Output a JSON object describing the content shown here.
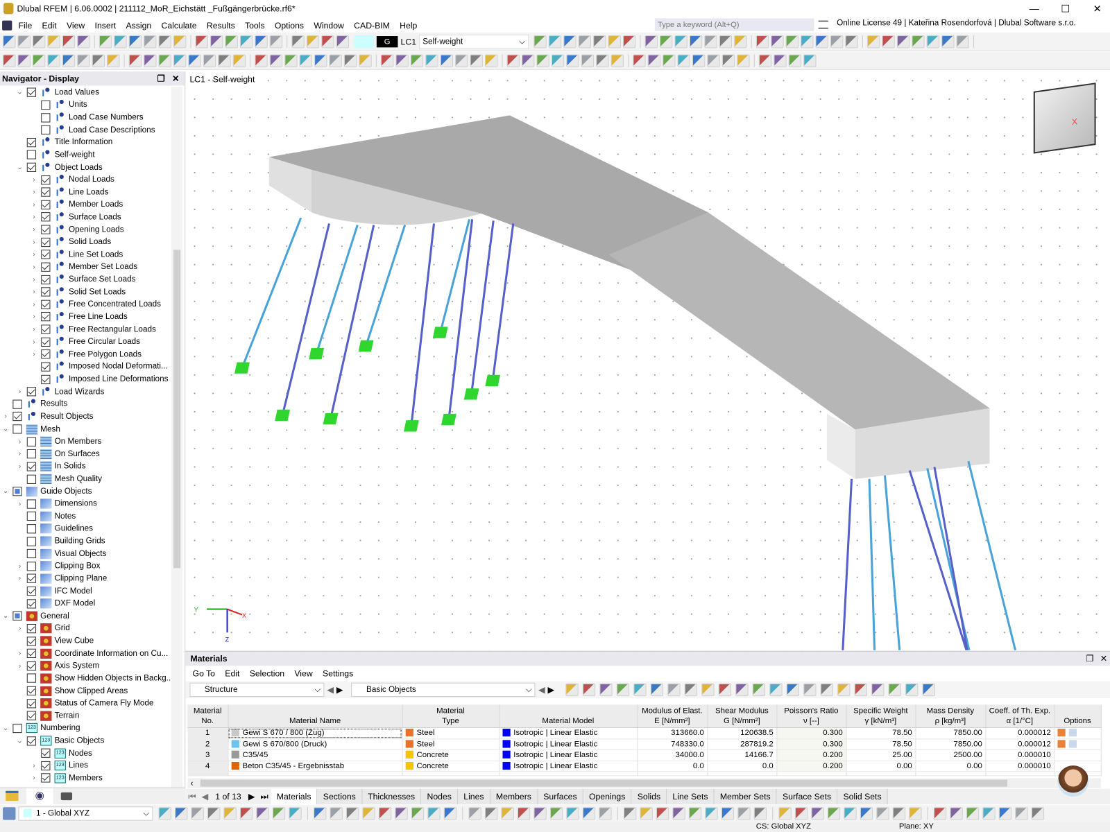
{
  "app": {
    "title": "Dlubal RFEM | 6.06.0002 | 211112_MoR_Eichstätt _Fußgängerbrücke.rf6*",
    "search_placeholder": "Type a keyword (Alt+Q)",
    "license": "Online License 49 | Kateřina Rosendorfová | Dlubal Software s.r.o."
  },
  "menu": [
    "File",
    "Edit",
    "View",
    "Insert",
    "Assign",
    "Calculate",
    "Results",
    "Tools",
    "Options",
    "Window",
    "CAD-BIM",
    "Help"
  ],
  "loadcase": {
    "badge": "G",
    "id": "LC1",
    "name": "Self-weight"
  },
  "navigator": {
    "title": "Navigator - Display",
    "items": [
      {
        "l": 1,
        "e": "v",
        "c": "on",
        "i": "load",
        "t": "Load Values"
      },
      {
        "l": 2,
        "e": "",
        "c": "off",
        "i": "load",
        "t": "Units"
      },
      {
        "l": 2,
        "e": "",
        "c": "off",
        "i": "load",
        "t": "Load Case Numbers"
      },
      {
        "l": 2,
        "e": "",
        "c": "off",
        "i": "load",
        "t": "Load Case Descriptions"
      },
      {
        "l": 1,
        "e": "",
        "c": "on",
        "i": "load",
        "t": "Title Information"
      },
      {
        "l": 1,
        "e": "",
        "c": "off",
        "i": "load",
        "t": "Self-weight"
      },
      {
        "l": 1,
        "e": "v",
        "c": "on",
        "i": "load",
        "t": "Object Loads"
      },
      {
        "l": 2,
        "e": ">",
        "c": "on",
        "i": "load",
        "t": "Nodal Loads"
      },
      {
        "l": 2,
        "e": ">",
        "c": "on",
        "i": "load",
        "t": "Line Loads"
      },
      {
        "l": 2,
        "e": ">",
        "c": "on",
        "i": "load",
        "t": "Member Loads"
      },
      {
        "l": 2,
        "e": ">",
        "c": "on",
        "i": "load",
        "t": "Surface Loads"
      },
      {
        "l": 2,
        "e": ">",
        "c": "on",
        "i": "load",
        "t": "Opening Loads"
      },
      {
        "l": 2,
        "e": ">",
        "c": "on",
        "i": "load",
        "t": "Solid Loads"
      },
      {
        "l": 2,
        "e": ">",
        "c": "on",
        "i": "load",
        "t": "Line Set Loads"
      },
      {
        "l": 2,
        "e": ">",
        "c": "on",
        "i": "load",
        "t": "Member Set Loads"
      },
      {
        "l": 2,
        "e": ">",
        "c": "on",
        "i": "load",
        "t": "Surface Set Loads"
      },
      {
        "l": 2,
        "e": ">",
        "c": "on",
        "i": "load",
        "t": "Solid Set Loads"
      },
      {
        "l": 2,
        "e": ">",
        "c": "on",
        "i": "load",
        "t": "Free Concentrated Loads"
      },
      {
        "l": 2,
        "e": ">",
        "c": "on",
        "i": "load",
        "t": "Free Line Loads"
      },
      {
        "l": 2,
        "e": ">",
        "c": "on",
        "i": "load",
        "t": "Free Rectangular Loads"
      },
      {
        "l": 2,
        "e": ">",
        "c": "on",
        "i": "load",
        "t": "Free Circular Loads"
      },
      {
        "l": 2,
        "e": ">",
        "c": "on",
        "i": "load",
        "t": "Free Polygon Loads"
      },
      {
        "l": 2,
        "e": "",
        "c": "on",
        "i": "load",
        "t": "Imposed Nodal Deformati..."
      },
      {
        "l": 2,
        "e": "",
        "c": "on",
        "i": "load",
        "t": "Imposed Line Deformations"
      },
      {
        "l": 1,
        "e": ">",
        "c": "on",
        "i": "load",
        "t": "Load Wizards"
      },
      {
        "l": 0,
        "e": "",
        "c": "off",
        "i": "load",
        "t": "Results"
      },
      {
        "l": 0,
        "e": ">",
        "c": "on",
        "i": "load",
        "t": "Result Objects"
      },
      {
        "l": 0,
        "e": "v",
        "c": "off",
        "i": "mesh",
        "t": "Mesh"
      },
      {
        "l": 1,
        "e": ">",
        "c": "off",
        "i": "mesh",
        "t": "On Members"
      },
      {
        "l": 1,
        "e": ">",
        "c": "off",
        "i": "mesh",
        "t": "On Surfaces"
      },
      {
        "l": 1,
        "e": ">",
        "c": "on",
        "i": "mesh",
        "t": "In Solids"
      },
      {
        "l": 1,
        "e": "",
        "c": "off",
        "i": "mesh",
        "t": "Mesh Quality"
      },
      {
        "l": 0,
        "e": "v",
        "c": "part",
        "i": "guide",
        "t": "Guide Objects"
      },
      {
        "l": 1,
        "e": ">",
        "c": "off",
        "i": "guide",
        "t": "Dimensions"
      },
      {
        "l": 1,
        "e": "",
        "c": "off",
        "i": "guide",
        "t": "Notes"
      },
      {
        "l": 1,
        "e": "",
        "c": "off",
        "i": "guide",
        "t": "Guidelines"
      },
      {
        "l": 1,
        "e": "",
        "c": "off",
        "i": "guide",
        "t": "Building Grids"
      },
      {
        "l": 1,
        "e": "",
        "c": "off",
        "i": "guide",
        "t": "Visual Objects"
      },
      {
        "l": 1,
        "e": ">",
        "c": "off",
        "i": "guide",
        "t": "Clipping Box"
      },
      {
        "l": 1,
        "e": ">",
        "c": "on",
        "i": "guide",
        "t": "Clipping Plane"
      },
      {
        "l": 1,
        "e": "",
        "c": "on",
        "i": "guide",
        "t": "IFC Model"
      },
      {
        "l": 1,
        "e": "",
        "c": "on",
        "i": "guide",
        "t": "DXF Model"
      },
      {
        "l": 0,
        "e": "v",
        "c": "part",
        "i": "gen",
        "t": "General"
      },
      {
        "l": 1,
        "e": ">",
        "c": "on",
        "i": "gen",
        "t": "Grid"
      },
      {
        "l": 1,
        "e": "",
        "c": "on",
        "i": "gen",
        "t": "View Cube"
      },
      {
        "l": 1,
        "e": ">",
        "c": "on",
        "i": "gen",
        "t": "Coordinate Information on Cu..."
      },
      {
        "l": 1,
        "e": ">",
        "c": "on",
        "i": "gen",
        "t": "Axis System"
      },
      {
        "l": 1,
        "e": "",
        "c": "off",
        "i": "gen",
        "t": "Show Hidden Objects in Backg..."
      },
      {
        "l": 1,
        "e": "",
        "c": "on",
        "i": "gen",
        "t": "Show Clipped Areas"
      },
      {
        "l": 1,
        "e": "",
        "c": "on",
        "i": "gen",
        "t": "Status of Camera Fly Mode"
      },
      {
        "l": 1,
        "e": "",
        "c": "on",
        "i": "gen",
        "t": "Terrain"
      },
      {
        "l": 0,
        "e": "v",
        "c": "off",
        "i": "num",
        "t": "Numbering"
      },
      {
        "l": 1,
        "e": "v",
        "c": "on",
        "i": "num",
        "t": "Basic Objects"
      },
      {
        "l": 2,
        "e": "",
        "c": "on",
        "i": "num",
        "t": "Nodes"
      },
      {
        "l": 2,
        "e": ">",
        "c": "on",
        "i": "num",
        "t": "Lines"
      },
      {
        "l": 2,
        "e": ">",
        "c": "on",
        "i": "num",
        "t": "Members"
      }
    ]
  },
  "viewport": {
    "title": "LC1 - Self-weight",
    "axes": {
      "x": "X",
      "y": "Y",
      "z": "Z"
    }
  },
  "materials": {
    "title": "Materials",
    "menu": [
      "Go To",
      "Edit",
      "Selection",
      "View",
      "Settings"
    ],
    "combo1": "Structure",
    "combo2": "Basic Objects",
    "headers": [
      [
        "Material",
        "No."
      ],
      [
        "",
        "Material Name"
      ],
      [
        "Material",
        "Type"
      ],
      [
        "",
        "Material Model"
      ],
      [
        "Modulus of Elast.",
        "E [N/mm²]"
      ],
      [
        "Shear Modulus",
        "G [N/mm²]"
      ],
      [
        "Poisson's Ratio",
        "ν [--]"
      ],
      [
        "Specific Weight",
        "γ [kN/m³]"
      ],
      [
        "Mass Density",
        "ρ [kg/m³]"
      ],
      [
        "Coeff. of Th. Exp.",
        "α [1/°C]"
      ],
      [
        "",
        "Options"
      ]
    ],
    "rows": [
      {
        "no": "1",
        "name": "Gewi S 670 / 800 (Zug)",
        "name_color": "#c8c8c8",
        "type": "Steel",
        "type_color": "#e8732a",
        "model": "Isotropic | Linear Elastic",
        "model_color": "#0000ff",
        "E": "313660.0",
        "G": "120638.5",
        "nu": "0.300",
        "gamma": "78.50",
        "rho": "7850.00",
        "alpha": "0.000012"
      },
      {
        "no": "2",
        "name": "Gewi S 670/800 (Druck)",
        "name_color": "#6ec3ee",
        "type": "Steel",
        "type_color": "#e8732a",
        "model": "Isotropic | Linear Elastic",
        "model_color": "#0000ff",
        "E": "748330.0",
        "G": "287819.2",
        "nu": "0.300",
        "gamma": "78.50",
        "rho": "7850.00",
        "alpha": "0.000012"
      },
      {
        "no": "3",
        "name": "C35/45",
        "name_color": "#999999",
        "type": "Concrete",
        "type_color": "#f5c400",
        "model": "Isotropic | Linear Elastic",
        "model_color": "#0000ff",
        "E": "34000.0",
        "G": "14166.7",
        "nu": "0.200",
        "gamma": "25.00",
        "rho": "2500.00",
        "alpha": "0.000010"
      },
      {
        "no": "4",
        "name": "Beton C35/45 - Ergebnisstab",
        "name_color": "#d9670a",
        "type": "Concrete",
        "type_color": "#f5c400",
        "model": "Isotropic | Linear Elastic",
        "model_color": "#0000ff",
        "E": "0.0",
        "G": "0.0",
        "nu": "0.200",
        "gamma": "0.00",
        "rho": "0.00",
        "alpha": "0.000010"
      }
    ],
    "pager": "1 of 13",
    "tabs": [
      "Materials",
      "Sections",
      "Thicknesses",
      "Nodes",
      "Lines",
      "Members",
      "Surfaces",
      "Openings",
      "Solids",
      "Line Sets",
      "Member Sets",
      "Surface Sets",
      "Solid Sets"
    ],
    "active_tab": "Materials"
  },
  "bottom": {
    "cs_combo": "1 - Global XYZ",
    "cs": "CS: Global XYZ",
    "plane": "Plane: XY"
  }
}
